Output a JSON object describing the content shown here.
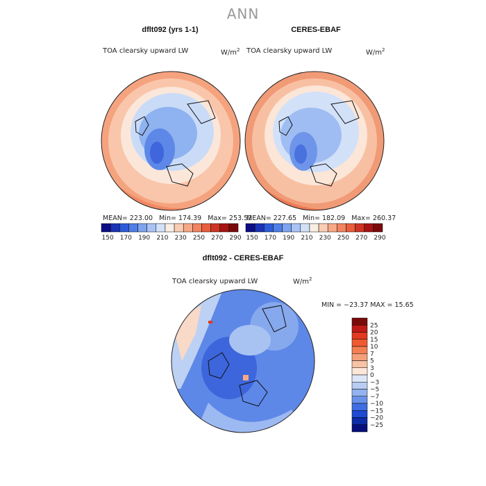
{
  "title": "ANN",
  "chart_data": [
    {
      "type": "heatmap",
      "title": "dflt092 (yrs 1-1)",
      "variable": "TOA clearsky upward LW",
      "units": "W/m",
      "units_sup": "2",
      "stats": {
        "mean_label": "MEAN=",
        "mean": "223.00",
        "min_label": "Min=",
        "min": "174.39",
        "max_label": "Max=",
        "max": "253.52"
      },
      "colorbar_ticks": [
        "150",
        "170",
        "190",
        "210",
        "230",
        "250",
        "270",
        "290"
      ],
      "colorbar_colors": [
        "#0d0d84",
        "#1b33b4",
        "#2e5bd8",
        "#4f7fe6",
        "#7fa4ef",
        "#a9c4f4",
        "#d3e1f8",
        "#f8eee4",
        "#f8cdb4",
        "#f7a987",
        "#f28461",
        "#e85d3c",
        "#cc3523",
        "#a51413",
        "#7a0a0a"
      ],
      "projection": "polar stereographic, north polar"
    },
    {
      "type": "heatmap",
      "title": "CERES-EBAF",
      "variable": "TOA clearsky upward LW",
      "units": "W/m",
      "units_sup": "2",
      "stats": {
        "mean_label": "MEAN=",
        "mean": "227.65",
        "min_label": "Min=",
        "min": "182.09",
        "max_label": "Max=",
        "max": "260.37"
      },
      "colorbar_ticks": [
        "150",
        "170",
        "190",
        "210",
        "230",
        "250",
        "270",
        "290"
      ],
      "colorbar_colors": [
        "#0d0d84",
        "#1b33b4",
        "#2e5bd8",
        "#4f7fe6",
        "#7fa4ef",
        "#a9c4f4",
        "#d3e1f8",
        "#f8eee4",
        "#f8cdb4",
        "#f7a987",
        "#f28461",
        "#e85d3c",
        "#cc3523",
        "#a51413",
        "#7a0a0a"
      ],
      "projection": "polar stereographic, north polar"
    },
    {
      "type": "heatmap",
      "title": "dflt092 - CERES-EBAF",
      "variable": "TOA clearsky upward LW",
      "units": "W/m",
      "units_sup": "2",
      "stats": {
        "text": "MIN = −23.37 MAX =  15.65"
      },
      "colorbar_ticks": [
        "25",
        "20",
        "15",
        "10",
        "7",
        "5",
        "3",
        "0",
        "−3",
        "−5",
        "−7",
        "−10",
        "−15",
        "−20",
        "−25"
      ],
      "colorbar_colors": [
        "#7a0a0a",
        "#c01a14",
        "#e2391f",
        "#f05a32",
        "#f47e53",
        "#f5a07a",
        "#f7c3a6",
        "#fbe6d8",
        "#dde6f6",
        "#b9cdf3",
        "#93b2ef",
        "#6a92ea",
        "#3f6ee2",
        "#1f4bd2",
        "#0c2ca8",
        "#05107a"
      ],
      "projection": "polar stereographic, north polar"
    }
  ]
}
